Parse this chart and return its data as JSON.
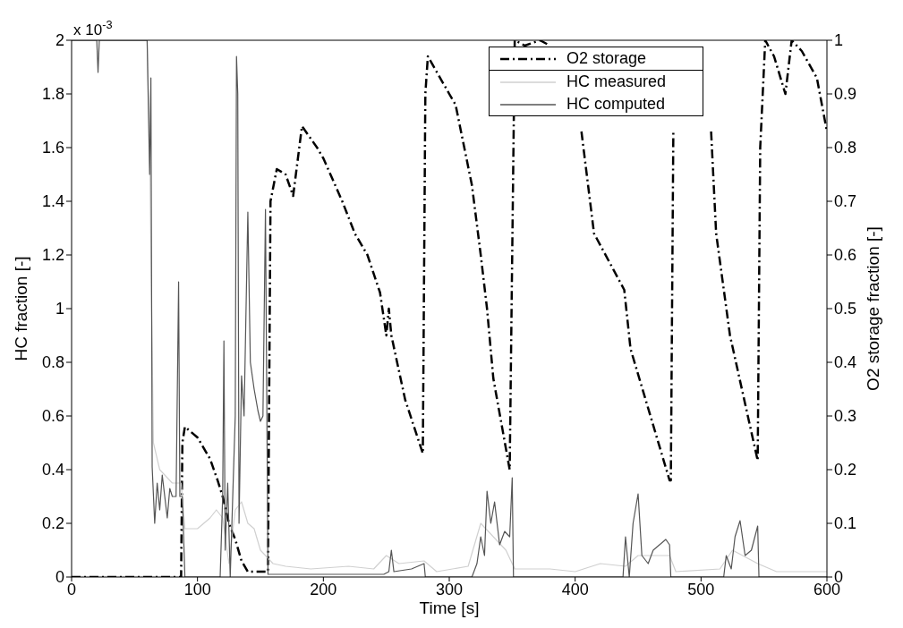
{
  "chart_data": {
    "type": "line",
    "xlabel": "Time [s]",
    "ylabel": "HC fraction [-]",
    "y2label": "O2 storage fraction [-]",
    "annotations": [
      "x 10$^{-3}$"
    ],
    "xlim": [
      0,
      600
    ],
    "xticks": [
      0,
      100,
      200,
      300,
      400,
      500,
      600
    ],
    "ylim": [
      0,
      2
    ],
    "yticks": [
      0,
      0.2,
      0.4,
      0.6,
      0.8,
      1,
      1.2,
      1.4,
      1.6,
      1.8,
      2
    ],
    "y2lim": [
      0,
      1
    ],
    "y2ticks": [
      0,
      0.1,
      0.2,
      0.3,
      0.4,
      0.5,
      0.6,
      0.7,
      0.8,
      0.9,
      1
    ],
    "legend": "top right",
    "marker": "none",
    "series": [
      {
        "name": "O2 storage",
        "color": "#000000",
        "axis": "y2",
        "line_style": "dashed",
        "x": [
          0,
          87,
          88,
          90,
          100,
          110,
          116,
          120,
          125,
          130,
          135,
          140,
          155,
          156,
          158,
          163,
          170,
          176,
          183,
          195,
          200,
          215,
          225,
          235,
          245,
          250,
          252,
          254,
          265,
          279,
          281,
          283,
          300,
          305,
          318,
          325,
          330,
          335,
          348,
          352,
          360,
          372,
          380,
          390,
          405,
          415,
          439,
          444,
          475,
          476,
          478,
          490,
          508,
          512,
          523,
          545,
          547,
          551,
          558,
          567,
          572,
          580,
          592,
          600
        ],
        "values": [
          0,
          0,
          0.25,
          0.28,
          0.26,
          0.22,
          0.18,
          0.15,
          0.1,
          0.07,
          0.03,
          0.01,
          0.01,
          0.01,
          0.7,
          0.76,
          0.75,
          0.71,
          0.84,
          0.8,
          0.78,
          0.7,
          0.64,
          0.6,
          0.53,
          0.45,
          0.5,
          0.45,
          0.33,
          0.23,
          0.9,
          0.97,
          0.9,
          0.88,
          0.73,
          0.6,
          0.5,
          0.37,
          0.2,
          1,
          0.99,
          1,
          0.99,
          null,
          0.83,
          0.64,
          0.535,
          0.425,
          0.18,
          0.18,
          0.83,
          null,
          0.83,
          0.64,
          0.45,
          0.217,
          0.8,
          1,
          0.97,
          0.9,
          1,
          0.98,
          0.93,
          0.83
        ]
      },
      {
        "name": "HC measured",
        "color": "#d0d0d0",
        "x": [
          0,
          60,
          62,
          63,
          65,
          70,
          80,
          87,
          90,
          100,
          110,
          115,
          120,
          125,
          130,
          135,
          140,
          145,
          150,
          160,
          170,
          190,
          220,
          240,
          250,
          260,
          280,
          290,
          315,
          325,
          335,
          345,
          352,
          380,
          400,
          420,
          440,
          450,
          475,
          480,
          515,
          525,
          545,
          560,
          600
        ],
        "values": [
          2,
          2,
          1.6,
          1.2,
          0.5,
          0.4,
          0.35,
          0.35,
          0.18,
          0.18,
          0.22,
          0.25,
          0.22,
          0.05,
          0.25,
          0.28,
          0.2,
          0.18,
          0.1,
          0.05,
          0.04,
          0.03,
          0.04,
          0.03,
          0.08,
          0.05,
          0.06,
          0.02,
          0.04,
          0.2,
          0.15,
          0.1,
          0.03,
          0.03,
          0.02,
          0.05,
          0.04,
          0.08,
          0.08,
          0.02,
          0.03,
          0.1,
          0.05,
          0.02,
          0.02
        ]
      },
      {
        "name": "HC computed",
        "color": "#555555",
        "x": [
          0,
          20,
          21,
          22,
          60,
          62,
          63,
          64,
          66,
          68,
          70,
          72,
          74,
          76,
          78,
          80,
          83,
          85,
          86,
          88,
          90,
          118,
          120,
          121,
          122,
          124,
          126,
          128,
          130,
          131,
          132,
          133,
          135,
          137,
          140,
          142,
          145,
          148,
          150,
          152,
          154,
          156,
          248,
          252,
          254,
          256,
          270,
          280,
          281,
          318,
          322,
          325,
          328,
          330,
          333,
          336,
          340,
          344,
          348,
          350,
          351,
          438,
          440,
          443,
          446,
          450,
          453,
          458,
          462,
          467,
          472,
          475,
          476,
          518,
          520,
          524,
          527,
          531,
          535,
          540,
          545,
          546,
          600
        ],
        "values": [
          2,
          2,
          1.88,
          2,
          2,
          1.5,
          1.86,
          0.41,
          0.2,
          0.35,
          0.25,
          0.38,
          0.3,
          0.22,
          0.33,
          0.3,
          0.3,
          1.1,
          0.3,
          0.3,
          0,
          0,
          0.3,
          0.88,
          0.1,
          0.35,
          0,
          0.3,
          0.6,
          1.94,
          1.8,
          0.2,
          0.75,
          0.6,
          1.36,
          0.8,
          0.7,
          0.62,
          0.58,
          0.6,
          1.37,
          0.01,
          0.01,
          0.02,
          0.1,
          0.02,
          0.03,
          0.05,
          0,
          0,
          0.05,
          0.15,
          0.08,
          0.32,
          0.2,
          0.28,
          0.12,
          0.17,
          0.15,
          0.37,
          0,
          0,
          0.15,
          0,
          0.2,
          0.31,
          0.08,
          0.05,
          0.1,
          0.12,
          0.14,
          0.12,
          0,
          0,
          0.08,
          0.03,
          0.15,
          0.21,
          0.08,
          0.1,
          0.19,
          0,
          0
        ]
      }
    ]
  }
}
